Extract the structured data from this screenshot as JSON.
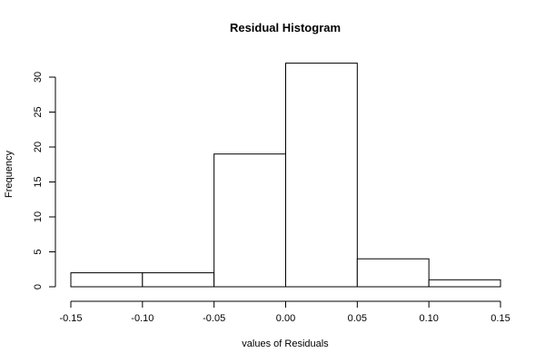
{
  "chart_data": {
    "type": "bar",
    "title": "Residual Histogram",
    "xlabel": "values of Residuals",
    "ylabel": "Frequency",
    "bins": [
      {
        "from": -0.15,
        "to": -0.1,
        "count": 2
      },
      {
        "from": -0.1,
        "to": -0.05,
        "count": 2
      },
      {
        "from": -0.05,
        "to": 0.0,
        "count": 19
      },
      {
        "from": 0.0,
        "to": 0.05,
        "count": 32
      },
      {
        "from": 0.05,
        "to": 0.1,
        "count": 4
      },
      {
        "from": 0.1,
        "to": 0.15,
        "count": 1
      }
    ],
    "xlim": [
      -0.15,
      0.15
    ],
    "ylim": [
      0,
      32
    ],
    "x_ticks": [
      {
        "value": -0.15,
        "label": "-0.15"
      },
      {
        "value": -0.1,
        "label": "-0.10"
      },
      {
        "value": -0.05,
        "label": "-0.05"
      },
      {
        "value": 0.0,
        "label": "0.00"
      },
      {
        "value": 0.05,
        "label": "0.05"
      },
      {
        "value": 0.1,
        "label": "0.10"
      },
      {
        "value": 0.15,
        "label": "0.15"
      }
    ],
    "y_ticks": [
      {
        "value": 0,
        "label": "0"
      },
      {
        "value": 5,
        "label": "5"
      },
      {
        "value": 10,
        "label": "10"
      },
      {
        "value": 15,
        "label": "15"
      },
      {
        "value": 20,
        "label": "20"
      },
      {
        "value": 25,
        "label": "25"
      },
      {
        "value": 30,
        "label": "30"
      }
    ],
    "grid": false,
    "colors": {
      "bar_fill": "#ffffff",
      "bar_stroke": "#000000"
    }
  }
}
